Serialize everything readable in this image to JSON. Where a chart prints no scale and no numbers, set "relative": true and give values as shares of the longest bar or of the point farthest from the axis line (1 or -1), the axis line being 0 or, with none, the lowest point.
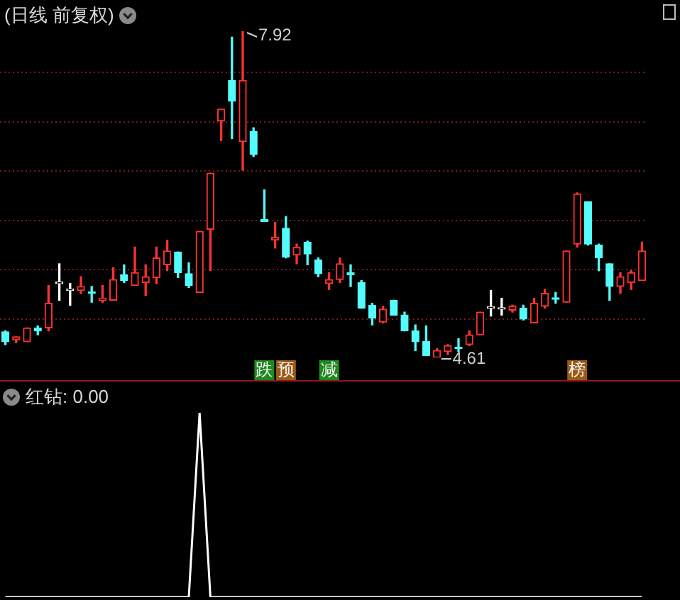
{
  "chart_data": [
    {
      "type": "candlestick",
      "title": "(日线 前复权)",
      "categories": [
        null,
        null,
        null,
        null,
        null,
        null,
        null,
        null,
        null,
        null,
        null,
        null,
        null,
        null,
        null,
        null,
        null,
        null,
        null,
        null,
        null,
        null,
        null,
        null,
        null,
        null,
        null,
        null,
        null,
        null,
        null,
        null,
        null,
        null,
        null,
        null,
        null,
        null,
        null,
        null,
        null,
        null,
        null,
        null,
        null,
        null,
        null,
        null,
        null,
        null,
        null,
        null,
        null,
        null,
        null,
        null,
        null,
        null,
        null,
        null
      ],
      "ohlc": [
        [
          4.87,
          4.88,
          4.74,
          4.77
        ],
        [
          4.79,
          4.82,
          4.76,
          4.82
        ],
        [
          4.77,
          4.91,
          4.77,
          4.91
        ],
        [
          4.91,
          4.93,
          4.84,
          4.88
        ],
        [
          4.91,
          5.34,
          4.88,
          5.16
        ],
        [
          5.36,
          5.56,
          5.19,
          5.36
        ],
        [
          5.29,
          5.36,
          5.14,
          5.29
        ],
        [
          5.29,
          5.43,
          5.26,
          5.33
        ],
        [
          5.27,
          5.33,
          5.17,
          5.26
        ],
        [
          5.19,
          5.34,
          5.17,
          5.21
        ],
        [
          5.19,
          5.52,
          5.19,
          5.4
        ],
        [
          5.45,
          5.55,
          5.37,
          5.39
        ],
        [
          5.34,
          5.73,
          5.34,
          5.47
        ],
        [
          5.37,
          5.55,
          5.24,
          5.43
        ],
        [
          5.42,
          5.73,
          5.36,
          5.62
        ],
        [
          5.55,
          5.8,
          5.49,
          5.69
        ],
        [
          5.68,
          5.68,
          5.42,
          5.47
        ],
        [
          5.46,
          5.57,
          5.32,
          5.34
        ],
        [
          5.27,
          5.89,
          5.27,
          5.89
        ],
        [
          5.91,
          6.48,
          5.49,
          6.48
        ],
        [
          7.01,
          7.13,
          6.81,
          7.13
        ],
        [
          7.42,
          7.86,
          6.83,
          7.21
        ],
        [
          6.8,
          7.92,
          6.51,
          7.42
        ],
        [
          6.9,
          6.94,
          6.65,
          6.67
        ],
        [
          6.01,
          6.31,
          5.99,
          5.99
        ],
        [
          5.8,
          5.98,
          5.72,
          5.83
        ],
        [
          5.92,
          6.04,
          5.62,
          5.63
        ],
        [
          5.65,
          5.76,
          5.56,
          5.73
        ],
        [
          5.78,
          5.79,
          5.55,
          5.66
        ],
        [
          5.6,
          5.62,
          5.43,
          5.46
        ],
        [
          5.36,
          5.47,
          5.3,
          5.4
        ],
        [
          5.4,
          5.62,
          5.37,
          5.56
        ],
        [
          5.47,
          5.55,
          5.33,
          5.45
        ],
        [
          5.37,
          5.39,
          5.11,
          5.11
        ],
        [
          5.14,
          5.16,
          4.94,
          5.01
        ],
        [
          4.97,
          5.13,
          4.96,
          5.1
        ],
        [
          5.19,
          5.19,
          5.04,
          5.04
        ],
        [
          5.04,
          5.07,
          4.88,
          4.88
        ],
        [
          4.88,
          4.94,
          4.68,
          4.77
        ],
        [
          4.77,
          4.93,
          4.63,
          4.63
        ],
        [
          4.61,
          4.7,
          4.61,
          4.68
        ],
        [
          4.67,
          4.74,
          4.64,
          4.73
        ],
        [
          4.71,
          4.8,
          4.67,
          4.7
        ],
        [
          4.74,
          4.88,
          4.73,
          4.84
        ],
        [
          4.84,
          5.07,
          4.84,
          5.07
        ],
        [
          5.11,
          5.29,
          5.03,
          5.11
        ],
        [
          5.1,
          5.21,
          5.04,
          5.1
        ],
        [
          5.09,
          5.14,
          5.07,
          5.13
        ],
        [
          5.11,
          5.14,
          4.99,
          5.0
        ],
        [
          4.96,
          5.21,
          4.96,
          5.16
        ],
        [
          5.13,
          5.3,
          5.11,
          5.26
        ],
        [
          5.21,
          5.27,
          5.16,
          5.2
        ],
        [
          5.17,
          5.69,
          5.17,
          5.69
        ],
        [
          5.76,
          6.28,
          5.73,
          6.27
        ],
        [
          6.19,
          6.19,
          5.75,
          5.76
        ],
        [
          5.75,
          5.76,
          5.49,
          5.62
        ],
        [
          5.56,
          5.56,
          5.19,
          5.33
        ],
        [
          5.33,
          5.47,
          5.26,
          5.43
        ],
        [
          5.37,
          5.49,
          5.3,
          5.47
        ],
        [
          5.39,
          5.78,
          5.39,
          5.69
        ]
      ],
      "colors": [
        "#54fcfc",
        "#ff3232",
        "#ff3232",
        "#54fcfc",
        "#ff3232",
        "#ffffff",
        "#ffffff",
        "#ff3232",
        "#54fcfc",
        "#ff3232",
        "#ff3232",
        "#54fcfc",
        "#ff3232",
        "#ff3232",
        "#ff3232",
        "#ff3232",
        "#54fcfc",
        "#54fcfc",
        "#ff3232",
        "#ff3232",
        "#ff3232",
        "#54fcfc",
        "#ff3232",
        "#54fcfc",
        "#54fcfc",
        "#ff3232",
        "#54fcfc",
        "#ff3232",
        "#54fcfc",
        "#54fcfc",
        "#ff3232",
        "#ff3232",
        "#54fcfc",
        "#54fcfc",
        "#54fcfc",
        "#ff3232",
        "#54fcfc",
        "#54fcfc",
        "#54fcfc",
        "#54fcfc",
        "#ff3232",
        "#ff3232",
        "#54fcfc",
        "#ff3232",
        "#ff3232",
        "#ffffff",
        "#ffffff",
        "#ff3232",
        "#54fcfc",
        "#ff3232",
        "#ff3232",
        "#54fcfc",
        "#ff3232",
        "#ff3232",
        "#54fcfc",
        "#54fcfc",
        "#54fcfc",
        "#ff3232",
        "#ff3232",
        "#ff3232"
      ],
      "yticks": [
        {
          "value": 5.0,
          "label": null
        },
        {
          "value": 5.5,
          "label": null
        },
        {
          "value": 6.0,
          "label": null
        },
        {
          "value": 6.5,
          "label": null
        },
        {
          "value": 7.0,
          "label": null
        },
        {
          "value": 7.5,
          "label": null
        }
      ],
      "grid": true,
      "tick_labels": false,
      "annotations": [
        "7.92",
        "4.61",
        "跌",
        "预",
        "减",
        "榜"
      ]
    },
    {
      "type": "line",
      "title": "红钻: 0.00",
      "relative": true,
      "tick_labels": false,
      "categories": [
        null,
        null,
        null,
        null,
        null,
        null,
        null,
        null,
        null,
        null,
        null,
        null,
        null,
        null,
        null,
        null,
        null,
        null,
        null,
        null,
        null,
        null,
        null,
        null,
        null,
        null,
        null,
        null,
        null,
        null,
        null,
        null,
        null,
        null,
        null,
        null,
        null,
        null,
        null,
        null,
        null,
        null,
        null,
        null,
        null,
        null,
        null,
        null,
        null,
        null,
        null,
        null,
        null,
        null,
        null,
        null,
        null,
        null,
        null,
        null
      ],
      "series": [
        {
          "color": "#ffffff",
          "values": [
            0,
            0,
            0,
            0,
            0,
            0,
            0,
            0,
            0,
            0,
            0,
            0,
            0,
            0,
            0,
            0,
            0,
            0,
            1,
            0,
            0,
            0,
            0,
            0,
            0,
            0,
            0,
            0,
            0,
            0,
            0,
            0,
            0,
            0,
            0,
            0,
            0,
            0,
            0,
            0,
            0,
            0,
            0,
            0,
            0,
            0,
            0,
            0,
            0,
            0,
            0,
            0,
            0,
            0,
            0,
            0,
            0,
            0,
            0,
            0
          ]
        }
      ]
    }
  ]
}
